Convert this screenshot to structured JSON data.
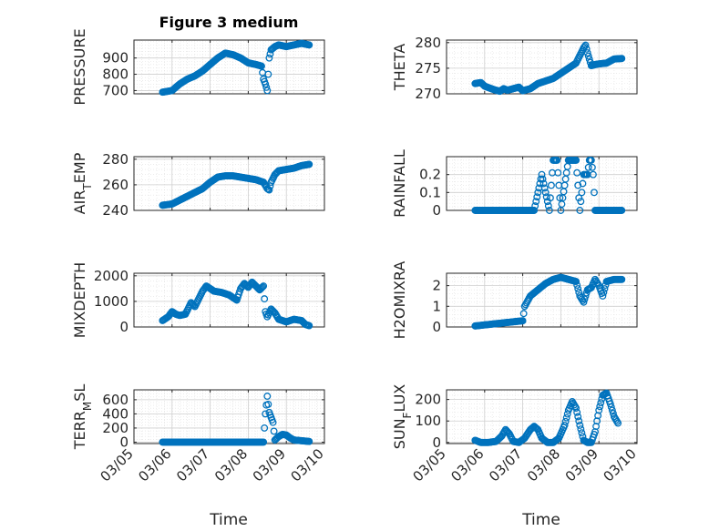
{
  "title": "Figure 3 medium",
  "xlabel": "Time",
  "x_ticks": [
    "03/05",
    "03/06",
    "03/07",
    "03/08",
    "03/09",
    "03/10"
  ],
  "marker_color": "#0072BD",
  "chart_data": [
    {
      "type": "scatter",
      "ylabel": "PRESSURE",
      "ylim": [
        680,
        1010
      ],
      "yticks": [
        700,
        800,
        900
      ],
      "points": [
        [
          0.75,
          690
        ],
        [
          1.0,
          700
        ],
        [
          1.2,
          740
        ],
        [
          1.4,
          770
        ],
        [
          1.6,
          790
        ],
        [
          1.8,
          820
        ],
        [
          2.0,
          860
        ],
        [
          2.1,
          880
        ],
        [
          2.2,
          900
        ],
        [
          2.4,
          930
        ],
        [
          2.6,
          920
        ],
        [
          2.8,
          900
        ],
        [
          3.0,
          870
        ],
        [
          3.2,
          860
        ],
        [
          3.35,
          850
        ],
        [
          3.4,
          770
        ],
        [
          3.45,
          740
        ],
        [
          3.5,
          700
        ],
        [
          3.55,
          900
        ],
        [
          3.6,
          950
        ],
        [
          3.7,
          970
        ],
        [
          3.8,
          980
        ],
        [
          4.0,
          970
        ],
        [
          4.2,
          980
        ],
        [
          4.4,
          990
        ],
        [
          4.6,
          980
        ]
      ]
    },
    {
      "type": "scatter",
      "ylabel": "THETA",
      "ylim": [
        270,
        280.5
      ],
      "yticks": [
        270,
        275,
        280
      ],
      "points": [
        [
          0.75,
          272
        ],
        [
          0.9,
          272.2
        ],
        [
          1.0,
          271.5
        ],
        [
          1.1,
          271.2
        ],
        [
          1.25,
          270.8
        ],
        [
          1.4,
          270.5
        ],
        [
          1.5,
          271
        ],
        [
          1.6,
          270.7
        ],
        [
          1.75,
          271
        ],
        [
          1.9,
          271.3
        ],
        [
          2.0,
          270.6
        ],
        [
          2.2,
          271
        ],
        [
          2.4,
          272
        ],
        [
          2.6,
          272.5
        ],
        [
          2.8,
          273
        ],
        [
          3.0,
          274
        ],
        [
          3.2,
          275
        ],
        [
          3.4,
          276
        ],
        [
          3.5,
          277.5
        ],
        [
          3.6,
          279
        ],
        [
          3.65,
          279.5
        ],
        [
          3.7,
          278
        ],
        [
          3.8,
          275.5
        ],
        [
          3.95,
          275.8
        ],
        [
          4.2,
          276
        ],
        [
          4.4,
          276.8
        ],
        [
          4.6,
          276.9
        ]
      ]
    },
    {
      "type": "scatter",
      "ylabel": "AIR_TEMP",
      "ylim": [
        240,
        282
      ],
      "yticks": [
        240,
        260,
        280
      ],
      "points": [
        [
          0.75,
          244
        ],
        [
          1.0,
          245
        ],
        [
          1.2,
          248
        ],
        [
          1.4,
          251
        ],
        [
          1.6,
          254
        ],
        [
          1.8,
          257
        ],
        [
          2.0,
          262
        ],
        [
          2.2,
          266
        ],
        [
          2.4,
          267
        ],
        [
          2.6,
          267
        ],
        [
          2.8,
          266
        ],
        [
          3.0,
          265
        ],
        [
          3.2,
          264
        ],
        [
          3.4,
          262
        ],
        [
          3.5,
          257
        ],
        [
          3.55,
          256
        ],
        [
          3.6,
          262
        ],
        [
          3.7,
          268
        ],
        [
          3.8,
          271
        ],
        [
          4.0,
          272
        ],
        [
          4.2,
          273
        ],
        [
          4.4,
          275
        ],
        [
          4.6,
          276
        ]
      ]
    },
    {
      "type": "scatter",
      "ylabel": "RAINFALL",
      "ylim": [
        0,
        0.3
      ],
      "yticks": [
        0,
        0.1,
        0.2
      ],
      "points": [
        [
          0.75,
          0
        ],
        [
          1.0,
          0
        ],
        [
          1.5,
          0
        ],
        [
          2.0,
          0
        ],
        [
          2.3,
          0
        ],
        [
          2.5,
          0.2
        ],
        [
          2.7,
          0
        ],
        [
          2.8,
          0.28
        ],
        [
          2.9,
          0.28
        ],
        [
          3.0,
          0
        ],
        [
          3.2,
          0.28
        ],
        [
          3.3,
          0.28
        ],
        [
          3.4,
          0.28
        ],
        [
          3.5,
          0
        ],
        [
          3.6,
          0.2
        ],
        [
          3.7,
          0.2
        ],
        [
          3.75,
          0.28
        ],
        [
          3.8,
          0.28
        ],
        [
          3.85,
          0.2
        ],
        [
          3.9,
          0
        ],
        [
          4.2,
          0
        ],
        [
          4.6,
          0
        ]
      ]
    },
    {
      "type": "scatter",
      "ylabel": "MIXDEPTH",
      "ylim": [
        0,
        2100
      ],
      "yticks": [
        0,
        1000,
        2000
      ],
      "points": [
        [
          0.75,
          250
        ],
        [
          0.9,
          400
        ],
        [
          1.0,
          600
        ],
        [
          1.1,
          500
        ],
        [
          1.2,
          450
        ],
        [
          1.35,
          500
        ],
        [
          1.5,
          950
        ],
        [
          1.6,
          800
        ],
        [
          1.7,
          1100
        ],
        [
          1.8,
          1400
        ],
        [
          1.9,
          1600
        ],
        [
          2.0,
          1500
        ],
        [
          2.1,
          1400
        ],
        [
          2.3,
          1350
        ],
        [
          2.5,
          1250
        ],
        [
          2.7,
          1050
        ],
        [
          2.8,
          1500
        ],
        [
          2.9,
          1700
        ],
        [
          3.0,
          1550
        ],
        [
          3.1,
          1750
        ],
        [
          3.2,
          1600
        ],
        [
          3.3,
          1450
        ],
        [
          3.4,
          1600
        ],
        [
          3.45,
          600
        ],
        [
          3.5,
          400
        ],
        [
          3.6,
          700
        ],
        [
          3.7,
          550
        ],
        [
          3.8,
          300
        ],
        [
          4.0,
          200
        ],
        [
          4.2,
          300
        ],
        [
          4.4,
          250
        ],
        [
          4.5,
          100
        ],
        [
          4.6,
          50
        ]
      ]
    },
    {
      "type": "scatter",
      "ylabel": "H2OMIXRA",
      "ylim": [
        0,
        2.6
      ],
      "yticks": [
        0,
        1,
        2
      ],
      "points": [
        [
          0.75,
          0.05
        ],
        [
          1.0,
          0.1
        ],
        [
          1.25,
          0.15
        ],
        [
          1.5,
          0.2
        ],
        [
          1.75,
          0.25
        ],
        [
          2.0,
          0.3
        ],
        [
          2.05,
          1.0
        ],
        [
          2.2,
          1.5
        ],
        [
          2.4,
          1.8
        ],
        [
          2.6,
          2.1
        ],
        [
          2.8,
          2.3
        ],
        [
          3.0,
          2.4
        ],
        [
          3.2,
          2.3
        ],
        [
          3.4,
          2.2
        ],
        [
          3.5,
          1.5
        ],
        [
          3.6,
          1.2
        ],
        [
          3.7,
          1.8
        ],
        [
          3.8,
          1.9
        ],
        [
          3.9,
          2.3
        ],
        [
          4.0,
          2.0
        ],
        [
          4.1,
          1.5
        ],
        [
          4.2,
          2.2
        ],
        [
          4.4,
          2.3
        ],
        [
          4.6,
          2.3
        ]
      ]
    },
    {
      "type": "scatter",
      "ylabel": "TERR_MSL",
      "ylim": [
        -20,
        740
      ],
      "yticks": [
        0,
        200,
        400,
        600
      ],
      "points": [
        [
          0.75,
          0
        ],
        [
          1.0,
          0
        ],
        [
          1.5,
          0
        ],
        [
          2.0,
          0
        ],
        [
          2.5,
          0
        ],
        [
          3.0,
          0
        ],
        [
          3.4,
          0
        ],
        [
          3.45,
          400
        ],
        [
          3.5,
          650
        ],
        [
          3.55,
          420
        ],
        [
          3.6,
          350
        ],
        [
          3.65,
          280
        ],
        [
          3.7,
          30
        ],
        [
          3.8,
          80
        ],
        [
          3.9,
          110
        ],
        [
          4.0,
          100
        ],
        [
          4.1,
          60
        ],
        [
          4.2,
          30
        ],
        [
          4.4,
          20
        ],
        [
          4.6,
          10
        ]
      ]
    },
    {
      "type": "scatter",
      "ylabel": "SUN_FLUX",
      "ylim": [
        -5,
        245
      ],
      "yticks": [
        0,
        100,
        200
      ],
      "points": [
        [
          0.75,
          10
        ],
        [
          0.9,
          0
        ],
        [
          1.1,
          0
        ],
        [
          1.3,
          5
        ],
        [
          1.45,
          30
        ],
        [
          1.55,
          60
        ],
        [
          1.65,
          40
        ],
        [
          1.75,
          5
        ],
        [
          1.9,
          0
        ],
        [
          2.05,
          20
        ],
        [
          2.2,
          60
        ],
        [
          2.3,
          75
        ],
        [
          2.4,
          60
        ],
        [
          2.5,
          20
        ],
        [
          2.65,
          0
        ],
        [
          2.8,
          0
        ],
        [
          2.95,
          20
        ],
        [
          3.1,
          80
        ],
        [
          3.2,
          150
        ],
        [
          3.3,
          190
        ],
        [
          3.4,
          160
        ],
        [
          3.5,
          80
        ],
        [
          3.6,
          10
        ],
        [
          3.7,
          0
        ],
        [
          3.8,
          0
        ],
        [
          3.9,
          50
        ],
        [
          4.0,
          150
        ],
        [
          4.1,
          220
        ],
        [
          4.2,
          230
        ],
        [
          4.3,
          180
        ],
        [
          4.4,
          120
        ],
        [
          4.5,
          90
        ]
      ]
    }
  ]
}
